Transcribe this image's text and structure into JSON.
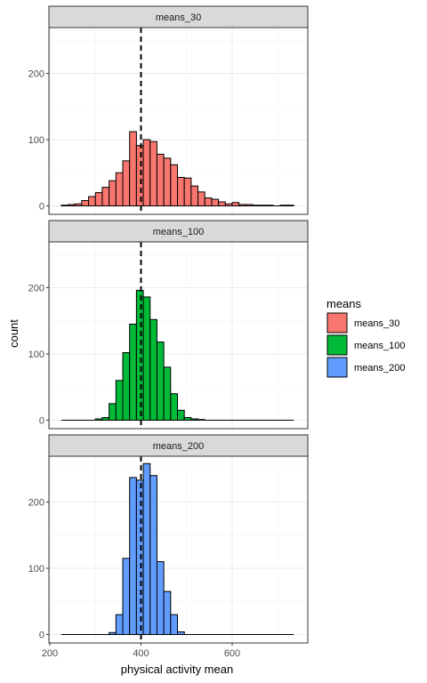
{
  "chart_data": {
    "type": "bar",
    "subtype": "faceted-histogram",
    "xlabel": "physical activity mean",
    "ylabel": "count",
    "xlim": [
      200,
      750
    ],
    "ylim": [
      0,
      275
    ],
    "xticks": [
      200,
      400,
      600
    ],
    "yticks": [
      0,
      100,
      200
    ],
    "bin_width": 15,
    "bin_start": 225,
    "reference_line": {
      "x": 400,
      "style": "dashed",
      "color": "#000000"
    },
    "grid": true,
    "legend": {
      "title": "means",
      "position": "right",
      "entries": [
        {
          "label": "means_30",
          "color": "#F8766D"
        },
        {
          "label": "means_100",
          "color": "#00BA38"
        },
        {
          "label": "means_200",
          "color": "#619CFF"
        }
      ]
    },
    "facets": [
      {
        "name": "means_30",
        "color": "#F8766D",
        "bins": [
          [
            225,
            1
          ],
          [
            240,
            2
          ],
          [
            255,
            3
          ],
          [
            270,
            8
          ],
          [
            285,
            14
          ],
          [
            300,
            20
          ],
          [
            315,
            28
          ],
          [
            330,
            38
          ],
          [
            345,
            50
          ],
          [
            360,
            68
          ],
          [
            375,
            112
          ],
          [
            390,
            91
          ],
          [
            405,
            100
          ],
          [
            420,
            97
          ],
          [
            435,
            78
          ],
          [
            450,
            72
          ],
          [
            465,
            62
          ],
          [
            480,
            43
          ],
          [
            495,
            42
          ],
          [
            510,
            30
          ],
          [
            525,
            21
          ],
          [
            540,
            12
          ],
          [
            555,
            10
          ],
          [
            570,
            6
          ],
          [
            585,
            3
          ],
          [
            600,
            5
          ],
          [
            615,
            2
          ],
          [
            630,
            2
          ],
          [
            645,
            1
          ],
          [
            660,
            1
          ],
          [
            675,
            1
          ],
          [
            690,
            0
          ],
          [
            705,
            1
          ],
          [
            720,
            1
          ]
        ]
      },
      {
        "name": "means_100",
        "color": "#00BA38",
        "bins": [
          [
            225,
            0
          ],
          [
            240,
            0
          ],
          [
            255,
            0
          ],
          [
            270,
            0
          ],
          [
            285,
            0
          ],
          [
            300,
            2
          ],
          [
            315,
            4
          ],
          [
            330,
            25
          ],
          [
            345,
            60
          ],
          [
            360,
            102
          ],
          [
            375,
            145
          ],
          [
            390,
            196
          ],
          [
            405,
            186
          ],
          [
            420,
            152
          ],
          [
            435,
            118
          ],
          [
            450,
            80
          ],
          [
            465,
            40
          ],
          [
            480,
            15
          ],
          [
            495,
            4
          ],
          [
            510,
            2
          ],
          [
            525,
            1
          ],
          [
            540,
            0
          ],
          [
            555,
            0
          ],
          [
            570,
            0
          ],
          [
            585,
            0
          ],
          [
            600,
            0
          ],
          [
            615,
            0
          ],
          [
            630,
            0
          ],
          [
            645,
            0
          ],
          [
            660,
            0
          ],
          [
            675,
            0
          ],
          [
            690,
            0
          ],
          [
            705,
            0
          ],
          [
            720,
            0
          ]
        ]
      },
      {
        "name": "means_200",
        "color": "#619CFF",
        "bins": [
          [
            225,
            0
          ],
          [
            240,
            0
          ],
          [
            255,
            0
          ],
          [
            270,
            0
          ],
          [
            285,
            0
          ],
          [
            300,
            0
          ],
          [
            315,
            0
          ],
          [
            330,
            3
          ],
          [
            345,
            30
          ],
          [
            360,
            115
          ],
          [
            375,
            237
          ],
          [
            390,
            233
          ],
          [
            405,
            258
          ],
          [
            420,
            240
          ],
          [
            435,
            110
          ],
          [
            450,
            65
          ],
          [
            465,
            30
          ],
          [
            480,
            4
          ],
          [
            495,
            0
          ],
          [
            510,
            0
          ],
          [
            525,
            0
          ],
          [
            540,
            0
          ],
          [
            555,
            0
          ],
          [
            570,
            0
          ],
          [
            585,
            0
          ],
          [
            600,
            0
          ],
          [
            615,
            0
          ],
          [
            630,
            0
          ],
          [
            645,
            0
          ],
          [
            660,
            0
          ],
          [
            675,
            0
          ],
          [
            690,
            0
          ],
          [
            705,
            0
          ],
          [
            720,
            0
          ]
        ]
      }
    ]
  }
}
